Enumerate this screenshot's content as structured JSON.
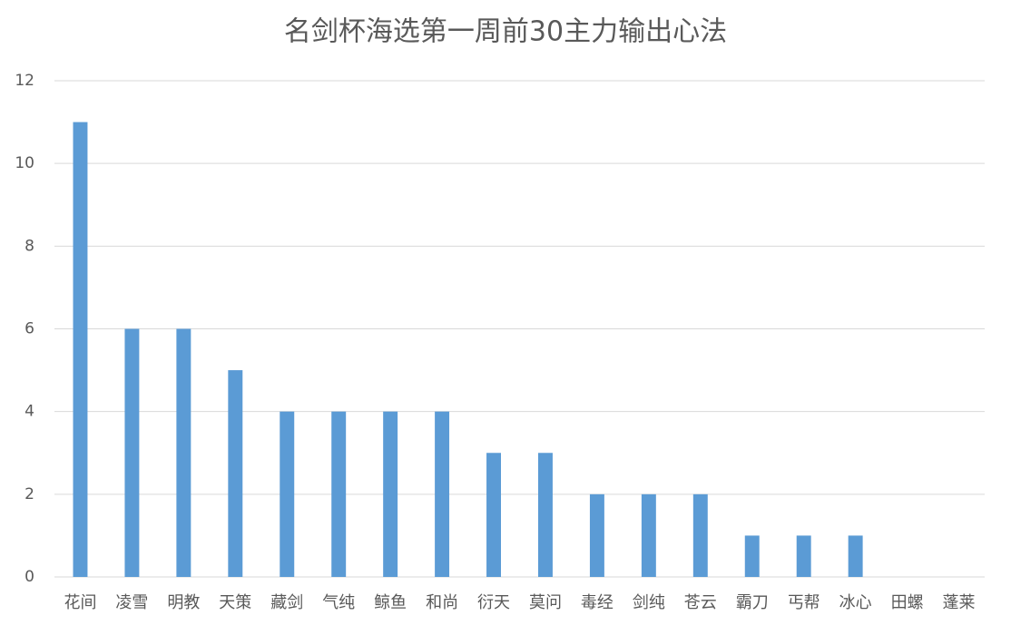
{
  "chart_data": {
    "type": "bar",
    "title": "名剑杯海选第一周前30主力输出心法",
    "categories": [
      "花间",
      "凌雪",
      "明教",
      "天策",
      "藏剑",
      "气纯",
      "鲸鱼",
      "和尚",
      "衍天",
      "莫问",
      "毒经",
      "剑纯",
      "苍云",
      "霸刀",
      "丐帮",
      "冰心",
      "田螺",
      "蓬莱"
    ],
    "values": [
      11,
      6,
      6,
      5,
      4,
      4,
      4,
      4,
      3,
      3,
      2,
      2,
      2,
      1,
      1,
      1,
      0,
      0
    ],
    "color": "#5b9bd5",
    "ylim": [
      0,
      12
    ],
    "yticks": [
      0,
      2,
      4,
      6,
      8,
      10,
      12
    ],
    "grid": true
  }
}
